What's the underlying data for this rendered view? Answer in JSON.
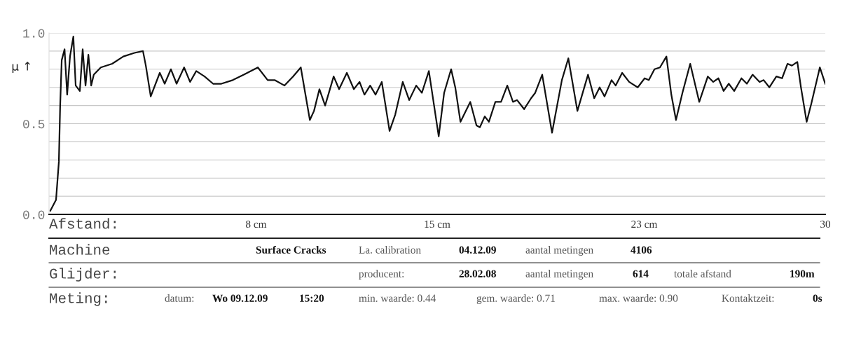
{
  "chart_data": {
    "type": "line",
    "xlabel": "Afstand:",
    "ylabel": "μ ↑",
    "xlim": [
      0,
      30
    ],
    "ylim": [
      0,
      1.0
    ],
    "xticks": [
      {
        "value": 8,
        "label": "8 cm"
      },
      {
        "value": 15,
        "label": "15 cm"
      },
      {
        "value": 23,
        "label": "23 cm"
      },
      30
    ],
    "yticks": [
      {
        "value": 0.0,
        "label": "0.0"
      },
      {
        "value": 0.1,
        "label": null
      },
      {
        "value": 0.2,
        "label": null
      },
      {
        "value": 0.3,
        "label": null
      },
      {
        "value": 0.4,
        "label": null
      },
      {
        "value": 0.5,
        "label": "0.5"
      },
      {
        "value": 0.6,
        "label": null
      },
      {
        "value": 0.7,
        "label": null
      },
      {
        "value": 0.8,
        "label": null
      },
      {
        "value": 0.9,
        "label": null
      },
      {
        "value": 1.0,
        "label": "1.0"
      }
    ],
    "grid": "y",
    "legend": false,
    "marker": "none",
    "line_style": "solid",
    "series": [
      {
        "color": "#111111",
        "x": [
          0.05,
          0.27,
          0.38,
          0.43,
          0.49,
          0.6,
          0.7,
          0.81,
          0.94,
          1.03,
          1.19,
          1.3,
          1.41,
          1.52,
          1.63,
          1.73,
          2.0,
          2.44,
          2.87,
          3.3,
          3.63,
          3.74,
          3.93,
          4.28,
          4.47,
          4.71,
          4.93,
          5.22,
          5.45,
          5.69,
          6.01,
          6.34,
          6.66,
          7.1,
          7.53,
          8.07,
          8.45,
          8.72,
          9.1,
          9.43,
          9.73,
          9.91,
          10.08,
          10.24,
          10.45,
          10.67,
          11.0,
          11.21,
          11.51,
          11.78,
          12.0,
          12.19,
          12.41,
          12.62,
          12.86,
          13.16,
          13.38,
          13.67,
          13.92,
          14.19,
          14.41,
          14.68,
          15.06,
          15.27,
          15.54,
          15.7,
          15.9,
          16.28,
          16.52,
          16.65,
          16.84,
          17.0,
          17.25,
          17.47,
          17.71,
          17.93,
          18.09,
          18.36,
          18.63,
          18.79,
          19.06,
          19.44,
          19.82,
          20.07,
          20.42,
          20.83,
          21.07,
          21.28,
          21.47,
          21.74,
          21.9,
          22.15,
          22.42,
          22.75,
          23.02,
          23.18,
          23.4,
          23.61,
          23.86,
          24.05,
          24.23,
          24.48,
          24.78,
          25.13,
          25.46,
          25.67,
          25.87,
          26.07,
          26.27,
          26.48,
          26.76,
          26.97,
          27.19,
          27.46,
          27.62,
          27.84,
          28.11,
          28.33,
          28.54,
          28.71,
          28.92,
          29.06,
          29.28,
          29.46,
          29.79,
          30.0
        ],
        "values": [
          0.02,
          0.08,
          0.29,
          0.6,
          0.85,
          0.91,
          0.66,
          0.87,
          0.98,
          0.71,
          0.68,
          0.91,
          0.71,
          0.88,
          0.71,
          0.77,
          0.81,
          0.83,
          0.87,
          0.89,
          0.9,
          0.82,
          0.65,
          0.78,
          0.72,
          0.8,
          0.72,
          0.81,
          0.73,
          0.79,
          0.76,
          0.72,
          0.72,
          0.74,
          0.77,
          0.81,
          0.74,
          0.74,
          0.71,
          0.76,
          0.81,
          0.66,
          0.52,
          0.57,
          0.69,
          0.6,
          0.76,
          0.69,
          0.78,
          0.69,
          0.73,
          0.66,
          0.71,
          0.66,
          0.73,
          0.46,
          0.55,
          0.73,
          0.63,
          0.71,
          0.67,
          0.79,
          0.43,
          0.67,
          0.8,
          0.7,
          0.51,
          0.62,
          0.49,
          0.48,
          0.54,
          0.51,
          0.62,
          0.62,
          0.71,
          0.62,
          0.63,
          0.58,
          0.64,
          0.67,
          0.77,
          0.45,
          0.74,
          0.86,
          0.57,
          0.77,
          0.64,
          0.7,
          0.65,
          0.74,
          0.71,
          0.78,
          0.73,
          0.7,
          0.75,
          0.74,
          0.8,
          0.81,
          0.87,
          0.66,
          0.52,
          0.67,
          0.83,
          0.62,
          0.76,
          0.73,
          0.75,
          0.68,
          0.72,
          0.68,
          0.75,
          0.72,
          0.77,
          0.73,
          0.74,
          0.7,
          0.76,
          0.75,
          0.83,
          0.82,
          0.84,
          0.7,
          0.51,
          0.61,
          0.81,
          0.72
        ]
      }
    ],
    "annotations": [
      "Machine",
      "Surface Cracks",
      "La. calibration",
      "04.12.09",
      "aantal metingen",
      "4106",
      "Glijder:",
      "producent:",
      "28.02.08",
      "aantal metingen",
      "614",
      "totale afstand",
      "190m",
      "Meting:",
      "datum:",
      "Wo 09.12.09",
      "15:20",
      "min. waarde: 0.44",
      "gem. waarde: 0.71",
      "max. waarde: 0.90",
      "Kontaktzeit:",
      "0s"
    ]
  }
}
